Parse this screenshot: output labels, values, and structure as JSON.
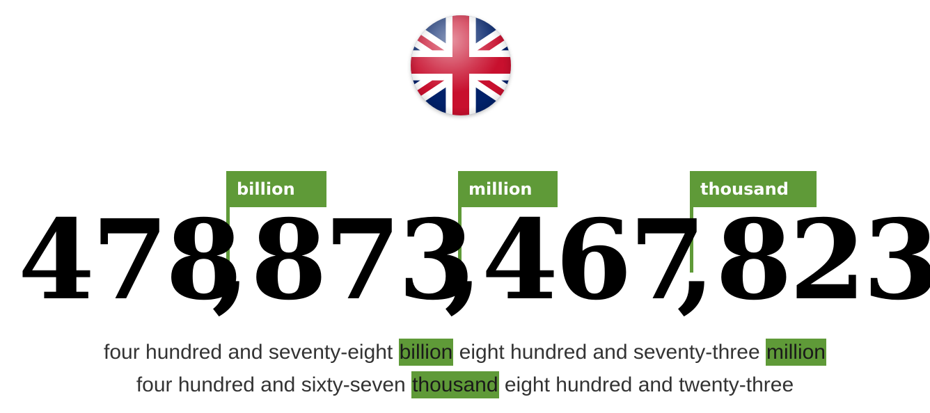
{
  "flag": {
    "icon": "union-jack-flag-icon",
    "colors": {
      "blue": "#012169",
      "red": "#C8102E",
      "white": "#FFFFFF"
    }
  },
  "accent_color": "#5f9a38",
  "groups": [
    {
      "label": "billion"
    },
    {
      "label": "million"
    },
    {
      "label": "thousand"
    }
  ],
  "number": {
    "groups": [
      "478",
      "873",
      "467",
      "823"
    ],
    "separator": ","
  },
  "words": {
    "line1": {
      "part1": "four hundred and seventy-eight ",
      "highlight1": "billion",
      "part2": " eight hundred and seventy-three ",
      "highlight2": "million"
    },
    "line2": {
      "part1": "four hundred and sixty-seven ",
      "highlight1": "thousand",
      "part2": " eight hundred and twenty-three"
    }
  }
}
